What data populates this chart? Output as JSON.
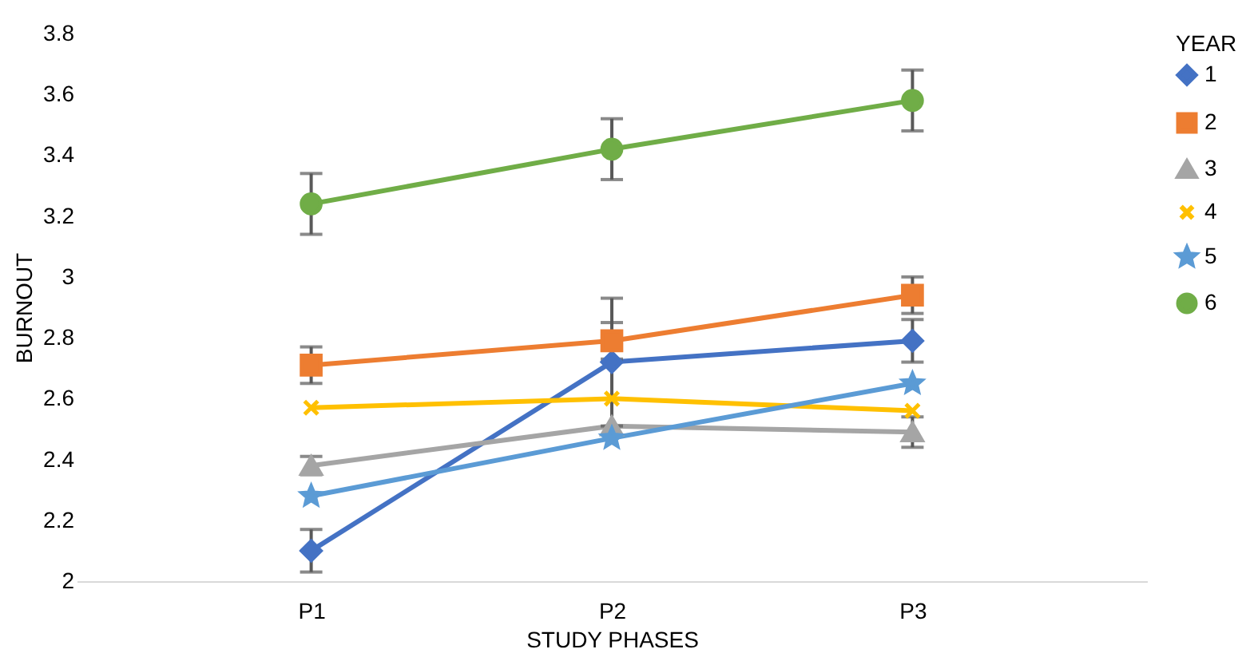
{
  "chart_data": {
    "type": "line",
    "xlabel": "STUDY PHASES",
    "ylabel": "BURNOUT",
    "legend_title": "YEAR",
    "categories": [
      "P1",
      "P2",
      "P3"
    ],
    "series": [
      {
        "name": "1",
        "color": "#4472c4",
        "marker": "diamond",
        "values": [
          2.1,
          2.72,
          2.79
        ],
        "errors": [
          0.07,
          0.21,
          0.07
        ]
      },
      {
        "name": "2",
        "color": "#ed7d31",
        "marker": "square",
        "values": [
          2.71,
          2.79,
          2.94
        ],
        "errors": [
          0.06,
          0.06,
          0.06
        ]
      },
      {
        "name": "3",
        "color": "#a5a5a5",
        "marker": "triangle",
        "values": [
          2.38,
          2.51,
          2.49
        ],
        "errors": [
          0.03,
          null,
          0.05
        ]
      },
      {
        "name": "4",
        "color": "#ffc000",
        "marker": "cross",
        "values": [
          2.57,
          2.6,
          2.56
        ]
      },
      {
        "name": "5",
        "color": "#5b9bd5",
        "marker": "star",
        "values": [
          2.28,
          2.47,
          2.65
        ]
      },
      {
        "name": "6",
        "color": "#70ad47",
        "marker": "circle",
        "values": [
          3.24,
          3.42,
          3.58
        ],
        "errors": [
          0.1,
          0.1,
          0.1
        ]
      }
    ],
    "ylim": [
      2,
      3.8
    ],
    "yticks": [
      2,
      2.2,
      2.4,
      2.6,
      2.8,
      3,
      3.2,
      3.4,
      3.6,
      3.8
    ],
    "grid": false,
    "legend": "right"
  }
}
